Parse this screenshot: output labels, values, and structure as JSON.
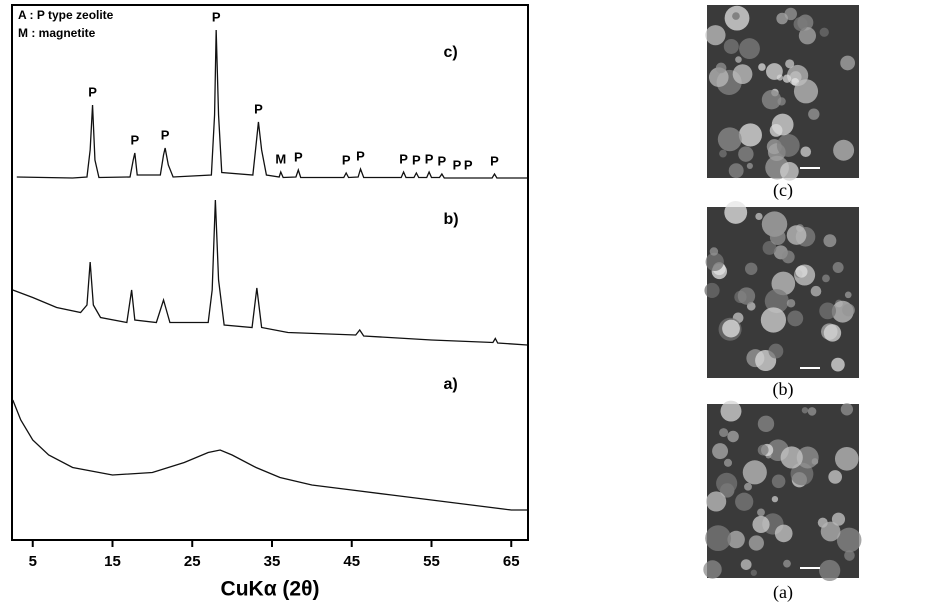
{
  "chart_data": {
    "type": "line",
    "legend_text": [
      "A : P type zeolite",
      "M : magnetite"
    ],
    "x_label": "CuKα (2θ)",
    "xlim": [
      2.4,
      67.1
    ],
    "xticks": [
      5,
      15,
      25,
      35,
      45,
      55,
      65
    ],
    "ylim": [
      0,
      107
    ],
    "series": [
      {
        "name": "c)",
        "color": "#111111",
        "x": [
          3,
          10,
          11.8,
          12.2,
          12.5,
          12.8,
          13.3,
          17.2,
          17.6,
          17.8,
          18.1,
          21,
          21.4,
          21.6,
          22,
          22.6,
          27.4,
          27.8,
          28,
          28.3,
          28.7,
          32.6,
          33,
          33.3,
          33.7,
          34.3,
          35.9,
          36.1,
          36.4,
          38,
          38.3,
          38.6,
          44,
          44.3,
          44.6,
          45.8,
          46.1,
          46.5,
          51.2,
          51.5,
          51.8,
          52.8,
          53.1,
          53.4,
          54.4,
          54.7,
          55,
          56,
          56.3,
          56.6,
          62.6,
          62.9,
          63.2,
          67
        ],
        "values": [
          72.6,
          72.4,
          72.6,
          78,
          87,
          76,
          72.5,
          72.6,
          76,
          77.4,
          73,
          73,
          77,
          78.4,
          75,
          72.6,
          73,
          85,
          102,
          85,
          73.5,
          73,
          79,
          83.6,
          78,
          73,
          72.6,
          73.6,
          72.5,
          72.6,
          74,
          72.5,
          72.5,
          73.4,
          72.5,
          72.6,
          74.2,
          72.5,
          72.5,
          73.6,
          72.5,
          72.5,
          73.4,
          72.5,
          72.5,
          73.6,
          72.5,
          72.5,
          73.2,
          72.4,
          72.4,
          73.2,
          72.4,
          72.4
        ],
        "peak_labels": [
          {
            "text": "P",
            "x": 12.5
          },
          {
            "text": "P",
            "x": 17.8
          },
          {
            "text": "P",
            "x": 21.6
          },
          {
            "text": "P",
            "x": 28
          },
          {
            "text": "P",
            "x": 33.3
          },
          {
            "text": "M",
            "x": 36.1
          },
          {
            "text": "P",
            "x": 38.3
          },
          {
            "text": "P",
            "x": 44.3
          },
          {
            "text": "P",
            "x": 46.1
          },
          {
            "text": "P",
            "x": 51.5
          },
          {
            "text": "P",
            "x": 53.1
          },
          {
            "text": "P",
            "x": 54.7
          },
          {
            "text": "P",
            "x": 56.3
          },
          {
            "text": "P",
            "x": 58.2
          },
          {
            "text": "P",
            "x": 59.6
          },
          {
            "text": "P",
            "x": 62.9
          }
        ]
      },
      {
        "name": "b)",
        "color": "#111111",
        "x": [
          2.5,
          5,
          8,
          11,
          11.8,
          12.2,
          12.6,
          13.5,
          16.8,
          17.4,
          17.8,
          20.5,
          21.4,
          22.2,
          27,
          27.5,
          27.9,
          28.3,
          29,
          32.5,
          33.1,
          33.7,
          37,
          45.5,
          46,
          46.5,
          55,
          62.7,
          63,
          63.3,
          67
        ],
        "values": [
          50,
          48.5,
          46.5,
          45.5,
          47,
          55.6,
          47,
          44.5,
          43.5,
          50,
          44,
          43.5,
          48,
          43.5,
          43.5,
          50,
          68,
          52,
          43,
          42.5,
          50.4,
          42.5,
          41.5,
          41,
          42,
          40.8,
          40,
          39.5,
          40.3,
          39.4,
          39
        ]
      },
      {
        "name": "a)",
        "color": "#111111",
        "x": [
          2.5,
          3.5,
          5,
          7,
          10,
          15,
          20,
          24,
          27,
          28.5,
          30,
          33,
          36,
          40,
          45,
          50,
          55,
          60,
          65,
          67
        ],
        "values": [
          28,
          24,
          20,
          17,
          14.5,
          13,
          13.5,
          15.5,
          17.5,
          18,
          17,
          14.5,
          12.5,
          11,
          10,
          9,
          8,
          7,
          6,
          6
        ]
      }
    ]
  },
  "images": [
    {
      "caption": "(c)"
    },
    {
      "caption": "(b)"
    },
    {
      "caption": "(a)"
    }
  ]
}
